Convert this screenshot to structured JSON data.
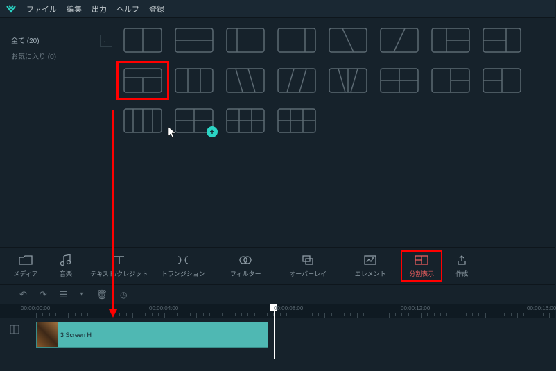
{
  "menu": {
    "items": [
      "ファイル",
      "編集",
      "出力",
      "ヘルプ",
      "登録"
    ]
  },
  "sidebar": {
    "all_label": "全て",
    "all_count": "(20)",
    "favorites_label": "お気に入り",
    "favorites_count": "(0)"
  },
  "layout_stroke": "#5c6a73",
  "toolbar": [
    {
      "name": "media",
      "label": "メディア"
    },
    {
      "name": "music",
      "label": "音楽"
    },
    {
      "name": "text",
      "label": "テキスト/クレジット",
      "wide": true
    },
    {
      "name": "transition",
      "label": "トランジション",
      "wide": true
    },
    {
      "name": "filter",
      "label": "フィルター",
      "wide": true
    },
    {
      "name": "overlay",
      "label": "オーバーレイ",
      "wide": true
    },
    {
      "name": "element",
      "label": "エレメント",
      "wide": true
    },
    {
      "name": "split",
      "label": "分割表示",
      "active": true
    },
    {
      "name": "export",
      "label": "作成"
    }
  ],
  "timecodes": [
    "00:00:00:00",
    "00:00:04:00",
    "00:00:08:00",
    "00:00:12:00",
    "00:00:16:00"
  ],
  "tick_positions": [
    60,
    245,
    425,
    608,
    790
  ],
  "tick_start": 52,
  "tick_spacing": 9.25,
  "clip": {
    "label": "3 Screen H"
  },
  "colors": {
    "accent": "#2bd4c4",
    "red": "#ff0000",
    "clip_bg": "#4fb8b3"
  }
}
